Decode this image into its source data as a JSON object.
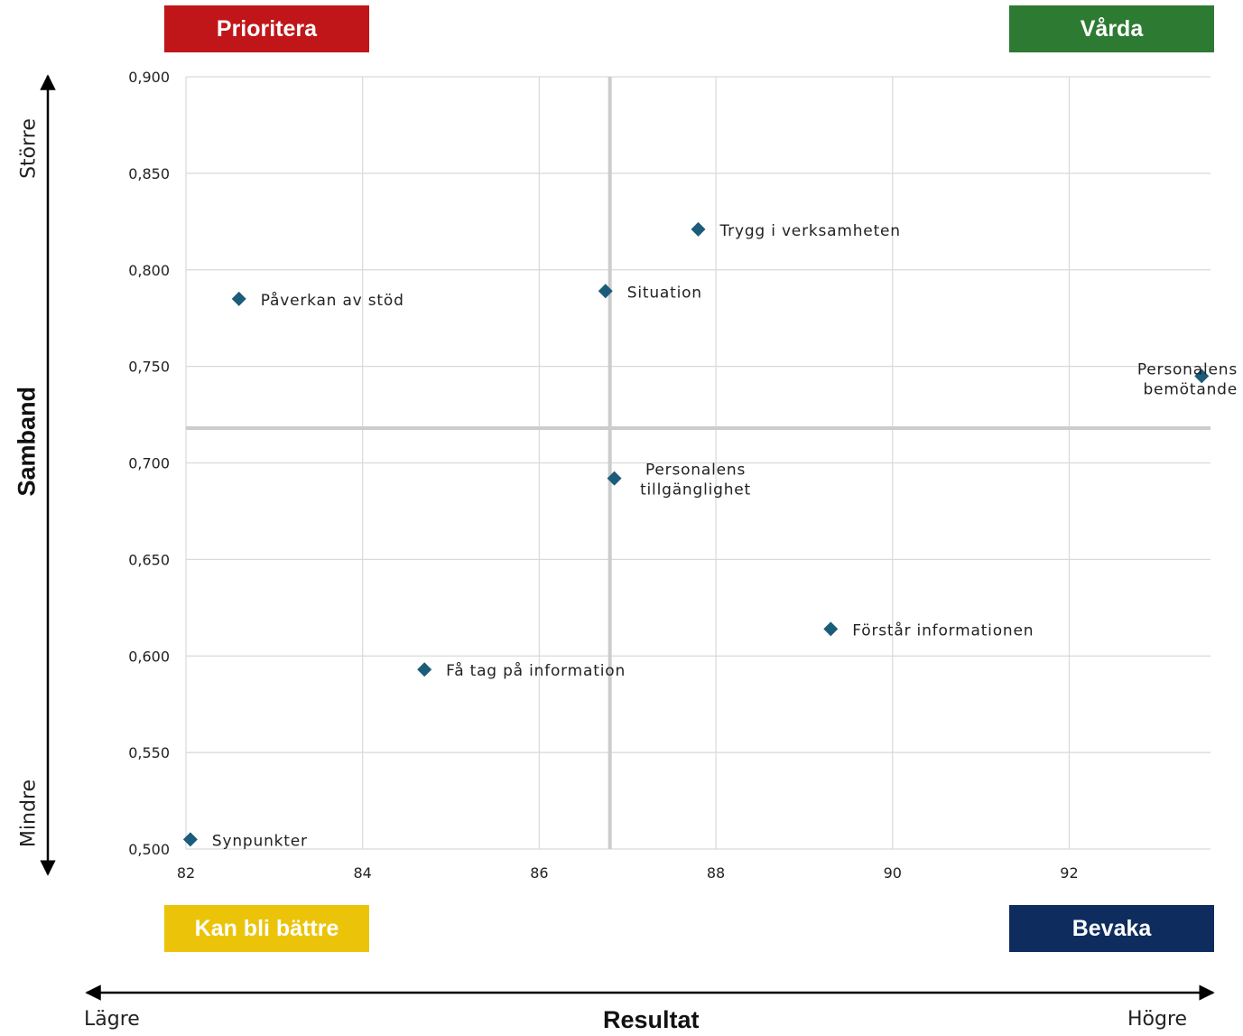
{
  "quadrants": {
    "top_left": {
      "label": "Prioritera",
      "color": "#C0161A"
    },
    "top_right": {
      "label": "Vårda",
      "color": "#2D7A32"
    },
    "bottom_left": {
      "label": "Kan bli bättre",
      "color": "#EBC40A"
    },
    "bottom_right": {
      "label": "Bevaka",
      "color": "#0E2D5E"
    }
  },
  "y_axis_guide": {
    "title": "Samband",
    "high": "Större",
    "low": "Mindre"
  },
  "x_axis_guide": {
    "title": "Resultat",
    "low": "Lägre",
    "high": "Högre"
  },
  "chart_data": {
    "type": "scatter",
    "title": "",
    "xlabel": "Resultat",
    "ylabel": "Samband",
    "xlim": [
      82,
      93.6
    ],
    "ylim": [
      0.5,
      0.9
    ],
    "x_ticks": [
      "82",
      "84",
      "86",
      "88",
      "90",
      "92"
    ],
    "y_ticks": [
      "0,500",
      "0,550",
      "0,600",
      "0,650",
      "0,700",
      "0,750",
      "0,800",
      "0,850",
      "0,900"
    ],
    "grid": true,
    "reference_lines": {
      "x": 86.8,
      "y": 0.718
    },
    "marker_color": "#1B5C7A",
    "points": [
      {
        "label": "Trygg i verksamheten",
        "x": 87.8,
        "y": 0.821
      },
      {
        "label": "Situation",
        "x": 86.75,
        "y": 0.789
      },
      {
        "label": "Påverkan av stöd",
        "x": 82.6,
        "y": 0.785
      },
      {
        "label": "Personalens bemötande",
        "x": 93.5,
        "y": 0.745
      },
      {
        "label": "Personalens tillgänglighet",
        "x": 86.85,
        "y": 0.692
      },
      {
        "label": "Förstår informationen",
        "x": 89.3,
        "y": 0.614
      },
      {
        "label": "Få tag på information",
        "x": 84.7,
        "y": 0.593
      },
      {
        "label": "Synpunkter",
        "x": 82.05,
        "y": 0.505
      }
    ]
  }
}
